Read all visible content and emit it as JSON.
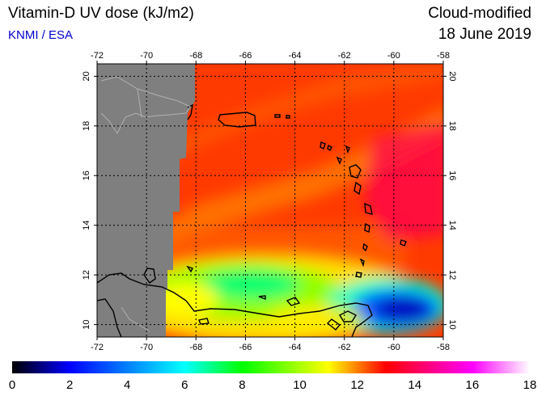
{
  "header": {
    "title": "Vitamin-D UV dose (kJ/m2)",
    "source": "KNMI / ESA",
    "product": "Cloud-modified",
    "date": "18 June 2019"
  },
  "map": {
    "lon_range": [
      -72,
      -58
    ],
    "lat_range": [
      9.5,
      20.5
    ],
    "lon_ticks": [
      -72,
      -70,
      -68,
      -66,
      -64,
      -62,
      -60,
      -58
    ],
    "lat_ticks": [
      10,
      12,
      14,
      16,
      18,
      20
    ],
    "gridlines": true,
    "no_data_color": "#7f7f7f"
  },
  "colorbar": {
    "min": 0,
    "max": 18,
    "ticks": [
      "0",
      "2",
      "4",
      "6",
      "8",
      "10",
      "12",
      "14",
      "16",
      "18"
    ],
    "colors": [
      "#000000",
      "#0000ff",
      "#00ffff",
      "#00ff00",
      "#ffff00",
      "#ff0000",
      "#ff00ff",
      "#ffffff"
    ]
  }
}
